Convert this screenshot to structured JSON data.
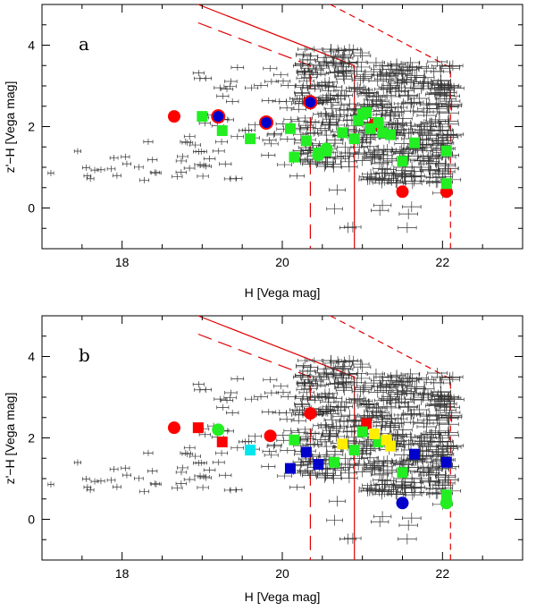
{
  "chart_data": [
    {
      "type": "scatter",
      "panel": "a",
      "xlabel": "H  [Vega mag]",
      "ylabel": "z'−H  [Vega mag]",
      "xlim": [
        17,
        23
      ],
      "ylim": [
        -1,
        5
      ],
      "xticks": [
        18,
        20,
        22
      ],
      "yticks": [
        0,
        2,
        4
      ],
      "grid": false,
      "selection_lines": [
        {
          "style": "solid",
          "points": [
            [
              18.95,
              5.0
            ],
            [
              20.9,
              3.5
            ],
            [
              20.9,
              -1.0
            ]
          ]
        },
        {
          "style": "long-dash",
          "points": [
            [
              18.95,
              4.55
            ],
            [
              20.35,
              3.5
            ],
            [
              20.35,
              -1.0
            ]
          ]
        },
        {
          "style": "short-dash",
          "points": [
            [
              20.6,
              5.0
            ],
            [
              22.1,
              3.45
            ],
            [
              22.1,
              -1.0
            ]
          ]
        }
      ],
      "series": [
        {
          "marker": "circle",
          "color": "#ff0000",
          "x": [
            18.65,
            21.15,
            21.5,
            22.05
          ],
          "y": [
            2.25,
            2.05,
            0.4,
            0.4
          ]
        },
        {
          "marker": "circle",
          "color": "#0000cc",
          "edge": "#ff0000",
          "x": [
            19.2,
            19.8,
            20.35
          ],
          "y": [
            2.25,
            2.1,
            2.6
          ]
        },
        {
          "marker": "square",
          "color": "#22ee22",
          "x": [
            19.0,
            19.25,
            19.6,
            20.1,
            20.15,
            20.3,
            20.45,
            20.55,
            20.75,
            20.9,
            20.95,
            21.0,
            21.05,
            21.1,
            21.2,
            21.25,
            21.35,
            21.5,
            21.65,
            22.05,
            22.05
          ],
          "y": [
            2.25,
            1.9,
            1.7,
            1.95,
            1.25,
            1.65,
            1.35,
            1.4,
            1.85,
            1.7,
            2.15,
            2.3,
            2.35,
            1.95,
            2.1,
            1.85,
            1.8,
            1.15,
            1.6,
            1.4,
            0.6
          ]
        },
        {
          "marker": "circle",
          "color": "#22ee22",
          "x": [
            20.45,
            20.55
          ],
          "y": [
            1.3,
            1.45
          ]
        }
      ]
    },
    {
      "type": "scatter",
      "panel": "b",
      "xlabel": "H  [Vega mag]",
      "ylabel": "z'−H  [Vega mag]",
      "xlim": [
        17,
        23
      ],
      "ylim": [
        -1,
        5
      ],
      "xticks": [
        18,
        20,
        22
      ],
      "yticks": [
        0,
        2,
        4
      ],
      "grid": false,
      "selection_lines": [
        {
          "style": "solid",
          "points": [
            [
              18.95,
              5.0
            ],
            [
              20.9,
              3.5
            ],
            [
              20.9,
              -1.0
            ]
          ]
        },
        {
          "style": "long-dash",
          "points": [
            [
              18.95,
              4.55
            ],
            [
              20.35,
              3.5
            ],
            [
              20.35,
              -1.0
            ]
          ]
        },
        {
          "style": "short-dash",
          "points": [
            [
              20.6,
              5.0
            ],
            [
              22.1,
              3.45
            ],
            [
              22.1,
              -1.0
            ]
          ]
        }
      ],
      "series": [
        {
          "marker": "circle",
          "color": "#ff0000",
          "x": [
            18.65,
            19.85,
            20.35
          ],
          "y": [
            2.25,
            2.05,
            2.6
          ]
        },
        {
          "marker": "square",
          "color": "#ff0000",
          "x": [
            18.95,
            19.25,
            21.05
          ],
          "y": [
            2.25,
            1.9,
            2.35
          ]
        },
        {
          "marker": "circle",
          "color": "#22ee22",
          "x": [
            19.2,
            22.05
          ],
          "y": [
            2.2,
            0.4
          ]
        },
        {
          "marker": "square",
          "color": "#00e5ee",
          "x": [
            19.6
          ],
          "y": [
            1.7
          ]
        },
        {
          "marker": "square",
          "color": "#22ee22",
          "x": [
            20.15,
            20.65,
            20.9,
            21.0,
            21.2,
            21.5,
            22.05
          ],
          "y": [
            1.95,
            1.4,
            1.7,
            2.15,
            1.9,
            1.15,
            0.6
          ]
        },
        {
          "marker": "square",
          "color": "#ffee00",
          "x": [
            20.75,
            21.15,
            21.3,
            21.35
          ],
          "y": [
            1.85,
            2.1,
            1.95,
            1.8
          ]
        },
        {
          "marker": "square",
          "color": "#0000cc",
          "x": [
            20.1,
            20.3,
            20.45,
            21.65,
            22.05
          ],
          "y": [
            1.25,
            1.65,
            1.35,
            1.6,
            1.4
          ]
        },
        {
          "marker": "circle",
          "color": "#0000cc",
          "x": [
            21.5
          ],
          "y": [
            0.4
          ]
        }
      ]
    }
  ]
}
